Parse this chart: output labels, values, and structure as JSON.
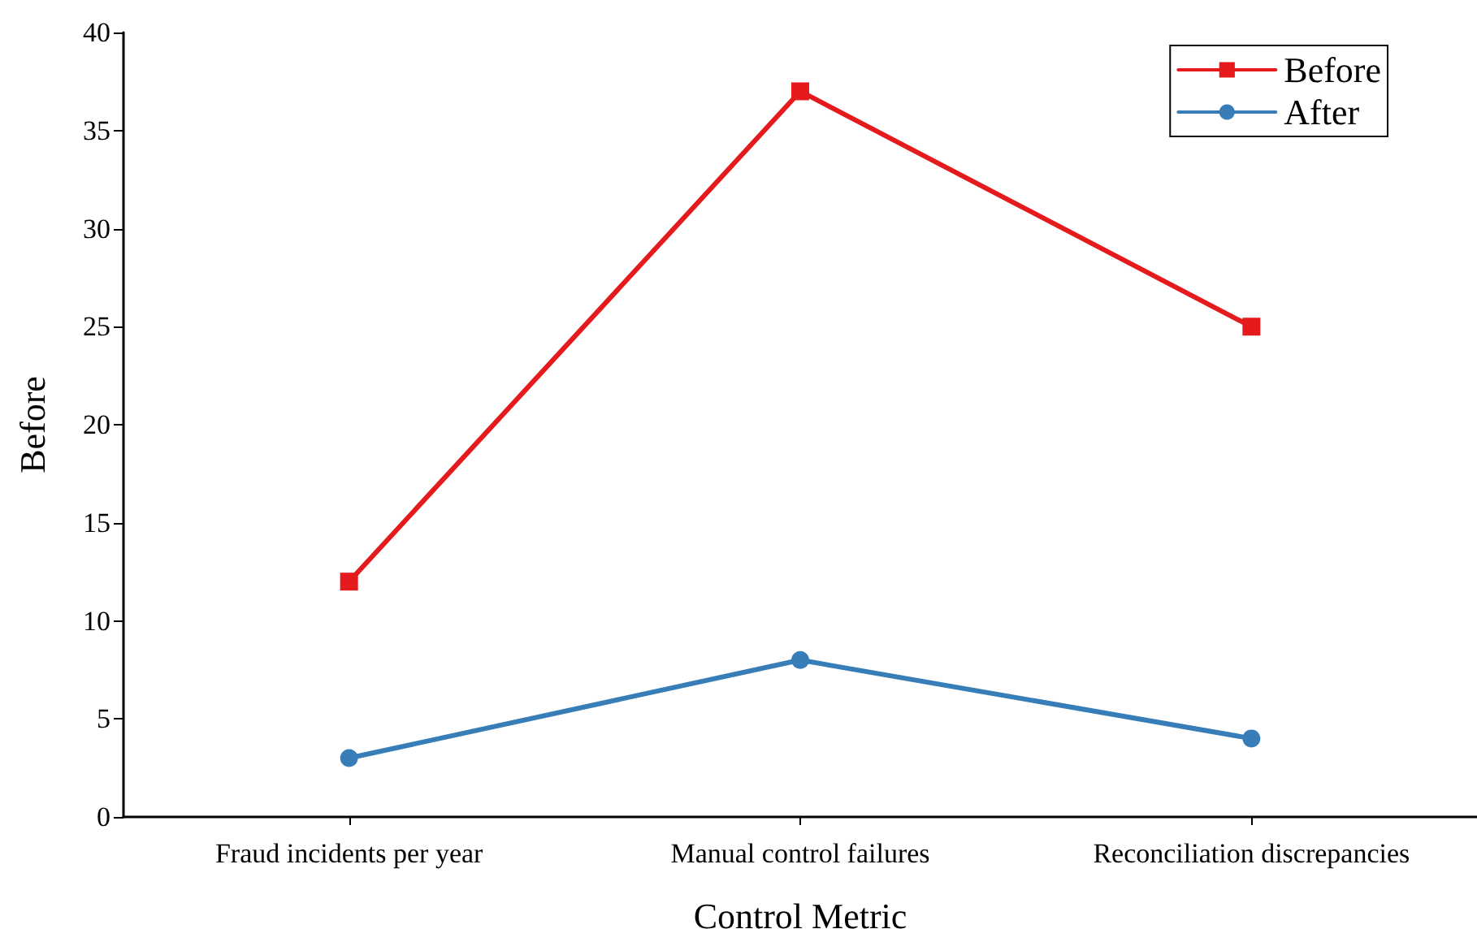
{
  "chart_data": {
    "type": "line",
    "xlabel": "Control Metric",
    "ylabel": "Before",
    "categories": [
      "Fraud incidents per year",
      "Manual control failures",
      "Reconciliation discrepancies"
    ],
    "series": [
      {
        "name": "Before",
        "color": "#e41a1c",
        "values": [
          12,
          37,
          25
        ],
        "marker": "square"
      },
      {
        "name": "After",
        "color": "#377eb8",
        "values": [
          3,
          8,
          4
        ],
        "marker": "circle"
      }
    ],
    "ylim": [
      0,
      40
    ],
    "yticks": [
      0,
      5,
      10,
      15,
      20,
      25,
      30,
      35,
      40
    ],
    "grid": false,
    "legend": "top right",
    "line_style": "solid"
  }
}
